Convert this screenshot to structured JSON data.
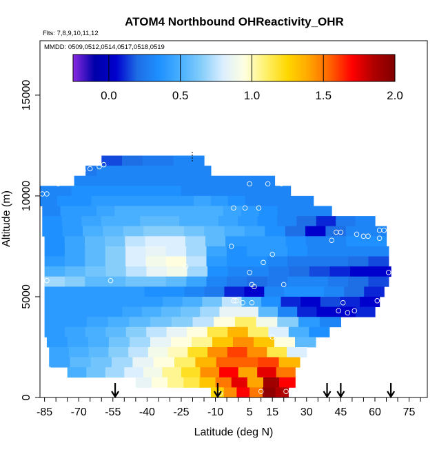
{
  "chart_data": {
    "type": "heatmap",
    "title": "ATOM4 Northbound OHReactivity_OHR",
    "subtitle_flights": "Flts: 7,8,9,10,11,12",
    "subtitle_dates": "MMDD: 0509,0512,0514,0517,0518,0519",
    "xlabel": "Latitude (deg N)",
    "ylabel": "Altitude (m)",
    "xlim": [
      -87,
      83
    ],
    "ylim": [
      0,
      17700
    ],
    "x_ticks": [
      -85,
      -70,
      -55,
      -40,
      -25,
      -10,
      5,
      15,
      30,
      45,
      60,
      75
    ],
    "x_tick_labels": [
      "-85",
      "-70",
      "-55",
      "-40",
      "-25",
      "-10",
      "5",
      "15",
      "30",
      "45",
      "60",
      "75"
    ],
    "y_ticks": [
      0,
      5000,
      10000,
      15000
    ],
    "y_tick_labels": [
      "0",
      "5000",
      "10000",
      "15000"
    ],
    "colorbar": {
      "min": -0.25,
      "max": 2.0,
      "ticks": [
        0.0,
        0.5,
        1.0,
        1.5,
        2.0
      ],
      "tick_labels": [
        "0.0",
        "0.5",
        "1.0",
        "1.5",
        "2.0"
      ],
      "colors": [
        "#8a2be2",
        "#0000a8",
        "#0000cd",
        "#1e6ee6",
        "#1e90ff",
        "#48b0ff",
        "#87cefa",
        "#dcefff",
        "#ffffe0",
        "#fff06a",
        "#ffd700",
        "#ffa500",
        "#ff6000",
        "#ff0000",
        "#b00000",
        "#800000"
      ]
    },
    "arrows_latitude": [
      -54,
      -9,
      39,
      45,
      67
    ],
    "altitude_bands": [
      {
        "alt": 11500,
        "x0": -60,
        "x1": -15,
        "values": [
          0.15,
          0.15,
          0.2,
          0.2,
          0.25,
          0.25,
          0.25,
          0.3,
          0.3,
          0.3
        ]
      },
      {
        "alt": 11000,
        "x0": -67,
        "x1": -12,
        "values": [
          0.25,
          0.3,
          0.3,
          0.3,
          0.3,
          0.3,
          0.3,
          0.3,
          0.3,
          0.3,
          0.3
        ]
      },
      {
        "alt": 10500,
        "x0": -72,
        "x1": 16,
        "values": [
          0.3,
          0.3,
          0.3,
          0.3,
          0.3,
          0.3,
          0.3,
          0.3,
          0.3,
          0.3,
          0.3,
          0.3,
          0.3,
          0.3,
          0.3
        ]
      },
      {
        "alt": 10000,
        "x0": -87,
        "x1": 23,
        "values": [
          0.3,
          0.3,
          0.35,
          0.35,
          0.35,
          0.35,
          0.35,
          0.35,
          0.35,
          0.3,
          0.3,
          0.3,
          0.3,
          0.3,
          0.3,
          0.3
        ]
      },
      {
        "alt": 9500,
        "x0": -87,
        "x1": 33,
        "values": [
          0.3,
          0.35,
          0.35,
          0.4,
          0.4,
          0.4,
          0.4,
          0.4,
          0.4,
          0.45,
          0.4,
          0.35,
          0.3,
          0.3,
          0.3,
          0.3
        ]
      },
      {
        "alt": 9000,
        "x0": -86,
        "x1": 41,
        "values": [
          0.3,
          0.4,
          0.4,
          0.45,
          0.5,
          0.5,
          0.5,
          0.5,
          0.5,
          0.5,
          0.45,
          0.4,
          0.35,
          0.3,
          0.3,
          0.3
        ]
      },
      {
        "alt": 8500,
        "x0": -86,
        "x1": 60,
        "values": [
          0.35,
          0.4,
          0.45,
          0.5,
          0.5,
          0.55,
          0.55,
          0.5,
          0.5,
          0.45,
          0.4,
          0.35,
          0.3,
          0.2,
          0.1,
          0.25,
          0.3
        ]
      },
      {
        "alt": 8000,
        "x0": -86,
        "x1": 65,
        "values": [
          0.35,
          0.4,
          0.5,
          0.55,
          0.6,
          0.65,
          0.65,
          0.6,
          0.55,
          0.5,
          0.45,
          0.35,
          0.2,
          0.05,
          0.2,
          0.3,
          0.3
        ]
      },
      {
        "alt": 7500,
        "x0": -85,
        "x1": 65,
        "values": [
          0.35,
          0.45,
          0.55,
          0.6,
          0.75,
          0.8,
          0.8,
          0.7,
          0.55,
          0.4,
          0.4,
          0.4,
          0.35,
          0.3,
          0.3,
          0.35,
          0.35
        ]
      },
      {
        "alt": 7000,
        "x0": -85,
        "x1": 66,
        "values": [
          0.35,
          0.45,
          0.55,
          0.65,
          0.8,
          0.85,
          0.8,
          0.7,
          0.45,
          0.35,
          0.4,
          0.4,
          0.35,
          0.3,
          0.3,
          0.3,
          0.3
        ]
      },
      {
        "alt": 6500,
        "x0": -85,
        "x1": 66,
        "values": [
          0.4,
          0.45,
          0.55,
          0.65,
          0.8,
          0.9,
          0.95,
          0.75,
          0.4,
          0.35,
          0.35,
          0.3,
          0.25,
          0.25,
          0.25,
          0.2,
          0.15
        ]
      },
      {
        "alt": 6000,
        "x0": -85,
        "x1": 67,
        "values": [
          0.5,
          0.55,
          0.6,
          0.65,
          0.75,
          0.85,
          0.9,
          0.7,
          0.35,
          0.3,
          0.3,
          0.25,
          0.2,
          0.15,
          0.1,
          0.05,
          0.05
        ]
      },
      {
        "alt": 5500,
        "x0": -85,
        "x1": 66,
        "values": [
          0.7,
          0.65,
          0.55,
          0.55,
          0.6,
          0.6,
          0.55,
          0.45,
          0.3,
          0.25,
          0.2,
          0.25,
          0.3,
          0.3,
          0.25,
          0.2,
          0.15
        ]
      },
      {
        "alt": 5000,
        "x0": -85,
        "x1": 64,
        "values": [
          0.4,
          0.4,
          0.4,
          0.4,
          0.4,
          0.35,
          0.35,
          0.3,
          0.25,
          0.1,
          0.05,
          0.3,
          0.35,
          0.35,
          0.3,
          0.2,
          0.1
        ]
      },
      {
        "alt": 4500,
        "x0": -85,
        "x1": 62,
        "values": [
          0.4,
          0.4,
          0.4,
          0.4,
          0.4,
          0.4,
          0.45,
          0.5,
          0.6,
          0.75,
          0.5,
          0.35,
          0.1,
          0.05,
          0.15,
          0.1,
          0.05
        ]
      },
      {
        "alt": 4000,
        "x0": -85,
        "x1": 60,
        "values": [
          0.4,
          0.4,
          0.4,
          0.4,
          0.45,
          0.5,
          0.55,
          0.6,
          0.7,
          0.85,
          0.85,
          0.55,
          0.3,
          0.1,
          0.05,
          0.05,
          0.1
        ]
      },
      {
        "alt": 3500,
        "x0": -85,
        "x1": 45,
        "values": [
          0.4,
          0.4,
          0.45,
          0.5,
          0.55,
          0.6,
          0.65,
          0.75,
          0.95,
          1.1,
          0.9,
          0.65,
          0.4,
          0.3
        ]
      },
      {
        "alt": 3000,
        "x0": -85,
        "x1": 40,
        "values": [
          0.4,
          0.45,
          0.5,
          0.55,
          0.65,
          0.75,
          0.85,
          0.95,
          1.15,
          1.35,
          1.1,
          0.8,
          0.5,
          0.35
        ]
      },
      {
        "alt": 2500,
        "x0": -84,
        "x1": 34,
        "values": [
          0.4,
          0.45,
          0.5,
          0.6,
          0.7,
          0.85,
          0.95,
          1.05,
          1.3,
          1.45,
          1.3,
          0.95,
          0.55
        ]
      },
      {
        "alt": 2000,
        "x0": -83,
        "x1": 30,
        "values": [
          0.45,
          0.5,
          0.55,
          0.65,
          0.75,
          0.9,
          1.0,
          1.2,
          1.45,
          1.6,
          1.45,
          1.15,
          0.8
        ]
      },
      {
        "alt": 1500,
        "x0": -83,
        "x1": 27,
        "values": [
          0.45,
          0.55,
          0.6,
          0.7,
          0.85,
          0.95,
          1.1,
          1.35,
          1.55,
          1.55,
          1.6,
          1.35
        ]
      },
      {
        "alt": 1000,
        "x0": -75,
        "x1": 25,
        "values": [
          0.5,
          0.6,
          0.7,
          0.8,
          0.9,
          1.05,
          1.2,
          1.45,
          1.7,
          1.4,
          1.75,
          1.5
        ]
      },
      {
        "alt": 500,
        "x0": -45,
        "x1": 25,
        "values": [
          0.85,
          0.95,
          1.05,
          1.15,
          1.3,
          1.5,
          1.75,
          1.4,
          1.9,
          1.7
        ]
      },
      {
        "alt": 0,
        "x0": -12,
        "x1": 22,
        "values": [
          1.25,
          1.45,
          1.7,
          1.5,
          1.95,
          1.85
        ]
      }
    ],
    "sample_points": [
      {
        "lat": -68,
        "alt": 11250
      },
      {
        "lat": -65,
        "alt": 11350
      },
      {
        "lat": -61,
        "alt": 11450
      },
      {
        "lat": -59,
        "alt": 11550
      },
      {
        "lat": -79,
        "alt": 10600
      },
      {
        "lat": -86,
        "alt": 10100
      },
      {
        "lat": -84,
        "alt": 10100
      },
      {
        "lat": 5,
        "alt": 10600
      },
      {
        "lat": 13,
        "alt": 10600
      },
      {
        "lat": 19,
        "alt": 10600
      },
      {
        "lat": -2,
        "alt": 9400
      },
      {
        "lat": 3,
        "alt": 9400
      },
      {
        "lat": 9,
        "alt": 9400
      },
      {
        "lat": 43,
        "alt": 8200
      },
      {
        "lat": 45,
        "alt": 8200
      },
      {
        "lat": 52,
        "alt": 8100
      },
      {
        "lat": 55,
        "alt": 8000
      },
      {
        "lat": 57,
        "alt": 8000
      },
      {
        "lat": 62,
        "alt": 8300
      },
      {
        "lat": 64,
        "alt": 8300
      },
      {
        "lat": 41,
        "alt": 7800
      },
      {
        "lat": 62,
        "alt": 7900
      },
      {
        "lat": 65,
        "alt": 8900
      },
      {
        "lat": -3,
        "alt": 7500
      },
      {
        "lat": 15,
        "alt": 7100
      },
      {
        "lat": 11,
        "alt": 6700
      },
      {
        "lat": -23,
        "alt": 6500
      },
      {
        "lat": 5,
        "alt": 6200
      },
      {
        "lat": 66,
        "alt": 6200
      },
      {
        "lat": -84,
        "alt": 5800
      },
      {
        "lat": -56,
        "alt": 5800
      },
      {
        "lat": 6,
        "alt": 5600
      },
      {
        "lat": 20,
        "alt": 5600
      },
      {
        "lat": 7,
        "alt": 5500
      },
      {
        "lat": -2,
        "alt": 4800
      },
      {
        "lat": -1,
        "alt": 4800
      },
      {
        "lat": 2,
        "alt": 4700
      },
      {
        "lat": 6,
        "alt": 4700
      },
      {
        "lat": 46,
        "alt": 4700
      },
      {
        "lat": 61,
        "alt": 4800
      },
      {
        "lat": 64,
        "alt": 4800
      },
      {
        "lat": 48,
        "alt": 4200
      },
      {
        "lat": 51,
        "alt": 4300
      },
      {
        "lat": 63,
        "alt": 4400
      },
      {
        "lat": 44,
        "alt": 4300
      },
      {
        "lat": 15,
        "alt": 3000
      },
      {
        "lat": -83,
        "alt": 1400
      },
      {
        "lat": -8,
        "alt": 200
      },
      {
        "lat": 10,
        "alt": 300
      },
      {
        "lat": 21,
        "alt": 300
      }
    ]
  }
}
